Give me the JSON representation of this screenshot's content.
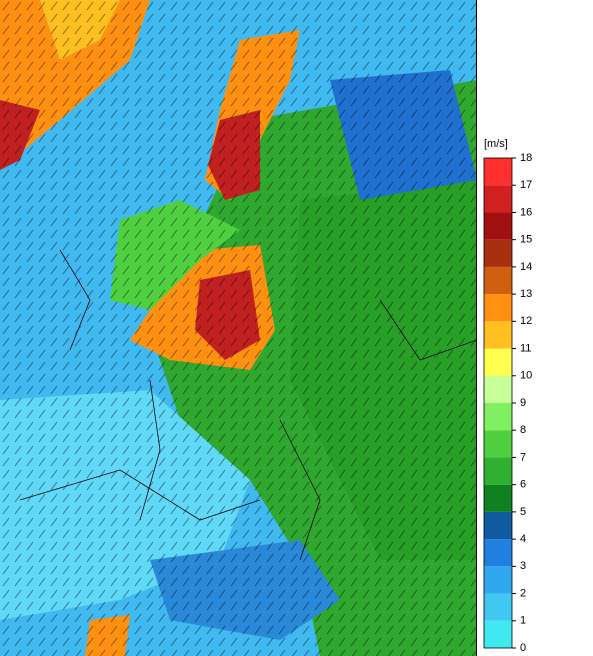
{
  "legend": {
    "unit": "[m/s]",
    "ticks": [
      0,
      1,
      2,
      3,
      4,
      5,
      6,
      7,
      8,
      9,
      10,
      11,
      12,
      13,
      14,
      15,
      16,
      17,
      18
    ],
    "colors": [
      "#80ffff",
      "#40e8f0",
      "#40c8f0",
      "#30a8f0",
      "#2080e0",
      "#105aa0",
      "#108020",
      "#30b030",
      "#50d040",
      "#80f060",
      "#c8ff98",
      "#ffff50",
      "#ffc020",
      "#ff9010",
      "#d06010",
      "#a83010",
      "#a01010",
      "#d02020",
      "#ff3030"
    ]
  }
}
